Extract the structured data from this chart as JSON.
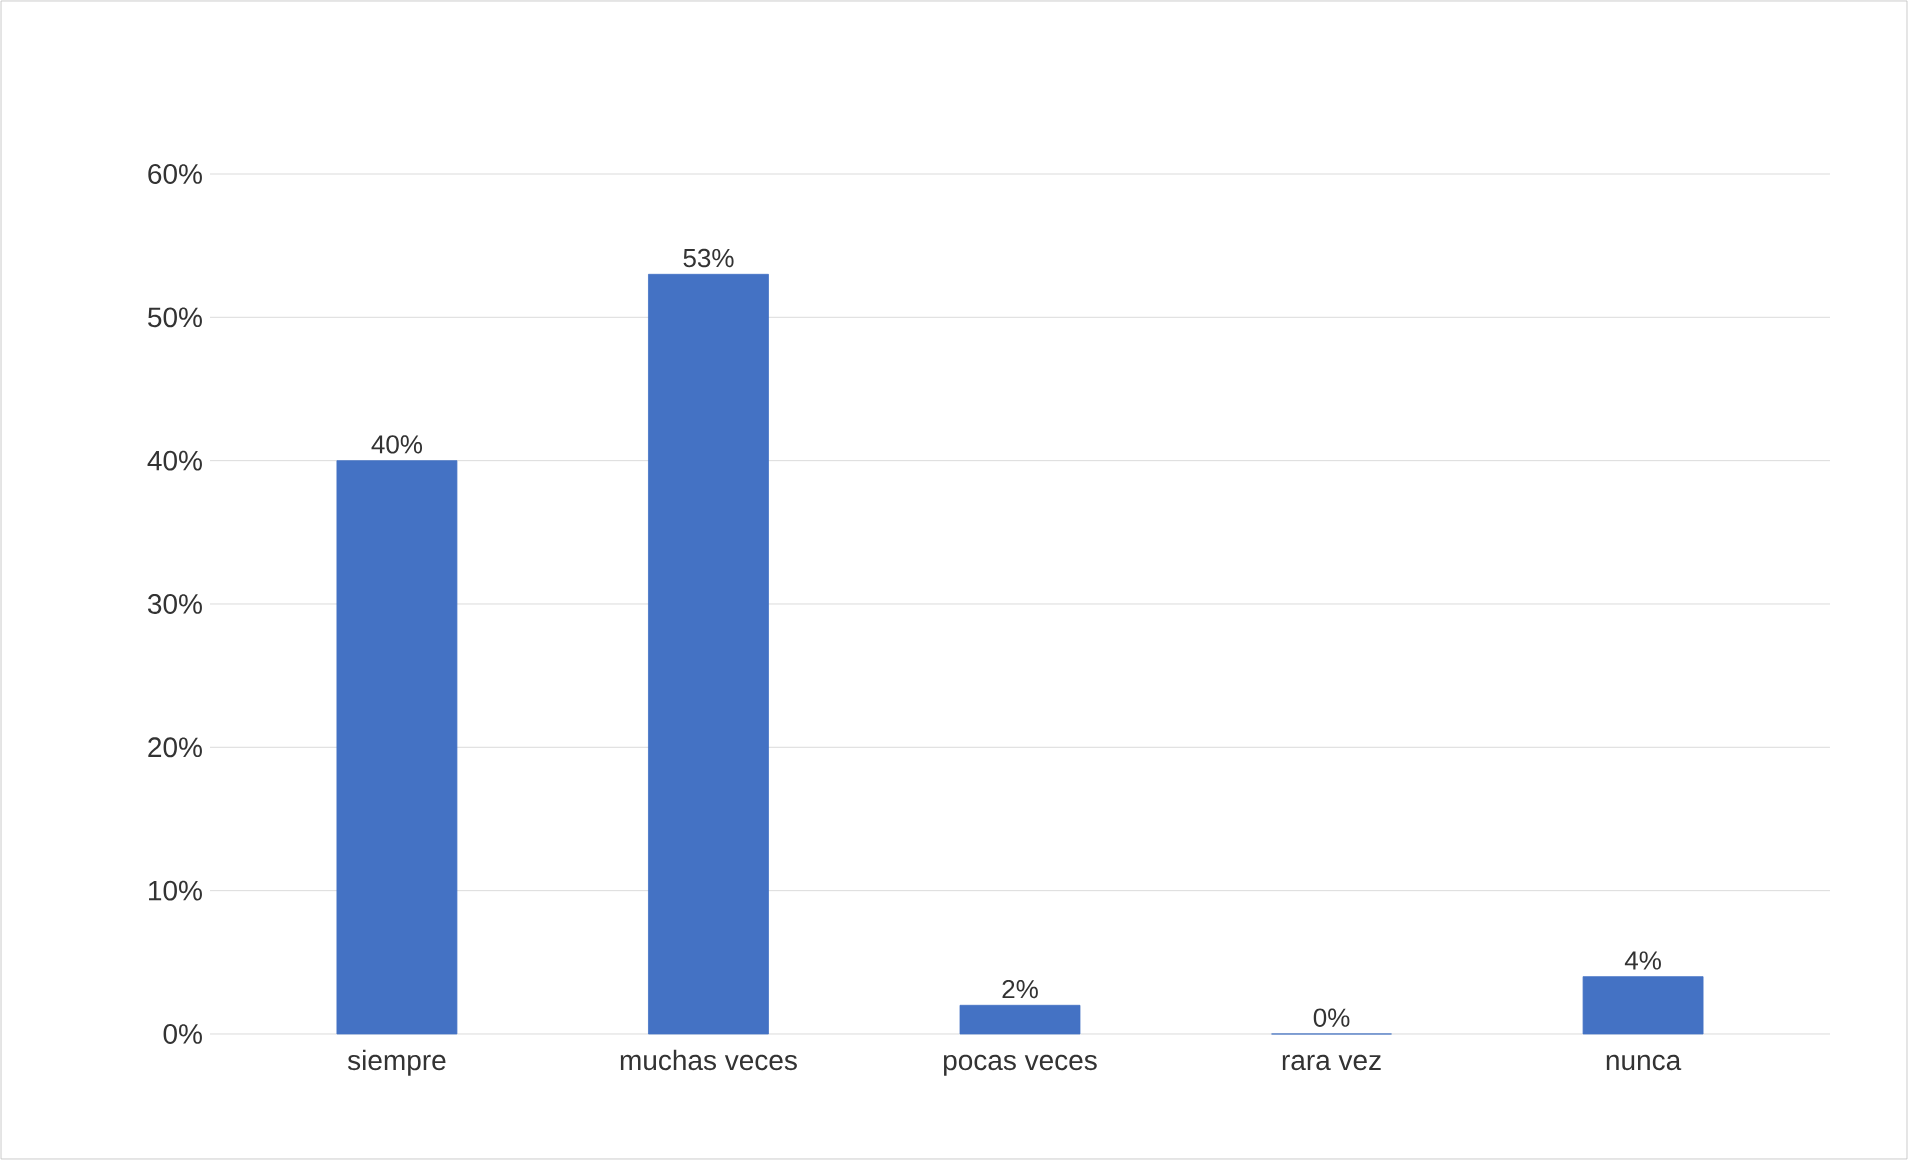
{
  "chart_data": {
    "type": "bar",
    "categories": [
      "siempre",
      "muchas veces",
      "pocas veces",
      "rara vez",
      "nunca"
    ],
    "values": [
      40,
      53,
      2,
      0,
      4
    ],
    "value_labels": [
      "40%",
      "53%",
      "2%",
      "0%",
      "4%"
    ],
    "color": "#4472c4",
    "ylim": [
      0,
      60
    ],
    "yticks": [
      {
        "value": 0,
        "label": "0%"
      },
      {
        "value": 10,
        "label": "10%"
      },
      {
        "value": 20,
        "label": "20%"
      },
      {
        "value": 30,
        "label": "30%"
      },
      {
        "value": 40,
        "label": "40%"
      },
      {
        "value": 50,
        "label": "50%"
      },
      {
        "value": 60,
        "label": "60%"
      }
    ],
    "grid": "y"
  }
}
